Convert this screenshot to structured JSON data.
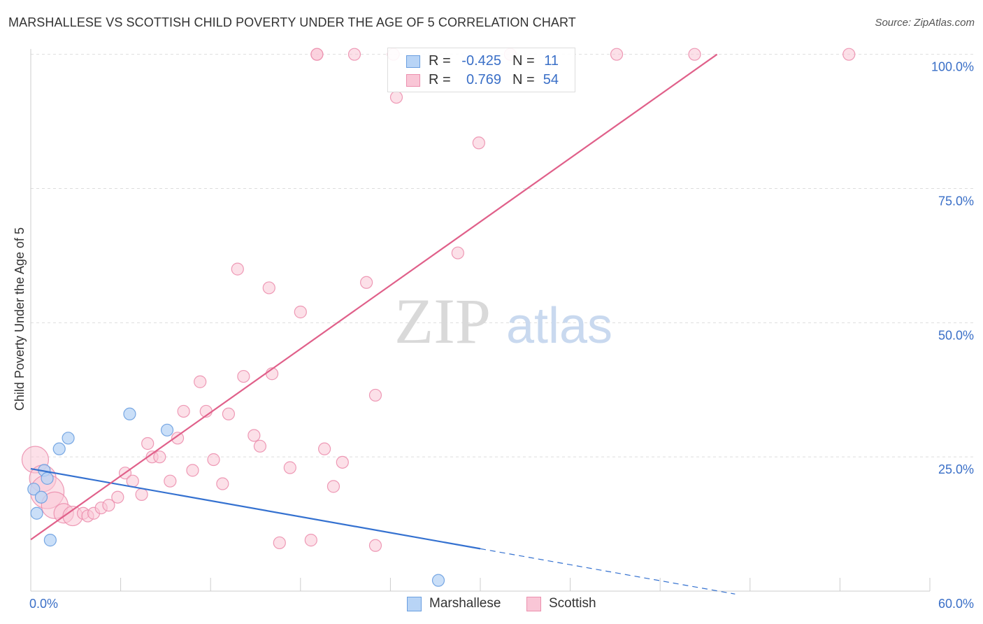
{
  "title": "MARSHALLESE VS SCOTTISH CHILD POVERTY UNDER THE AGE OF 5 CORRELATION CHART",
  "source": "Source: ZipAtlas.com",
  "watermark": {
    "zip": "ZIP",
    "atlas": "atlas"
  },
  "legend": {
    "rows": [
      {
        "r_label": "R =",
        "r_value": "-0.425",
        "n_label": "N =",
        "n_value": "11"
      },
      {
        "r_label": "R =",
        "r_value": "0.769",
        "n_label": "N =",
        "n_value": "54"
      }
    ]
  },
  "bottom_legend": {
    "marshallese": "Marshallese",
    "scottish": "Scottish"
  },
  "colors": {
    "marshallese_fill": "#b8d4f6",
    "marshallese_stroke": "#6a9fe0",
    "marshallese_line": "#3471d0",
    "scottish_fill": "#f9c6d6",
    "scottish_stroke": "#ec8fae",
    "scottish_line": "#e0608a",
    "tick_label": "#3a6fc7",
    "grid": "#dddddd"
  },
  "chart_data": {
    "type": "scatter",
    "title": "MARSHALLESE VS SCOTTISH CHILD POVERTY UNDER THE AGE OF 5 CORRELATION CHART",
    "xlabel": "",
    "ylabel": "Child Poverty Under the Age of 5",
    "xlim": [
      0,
      60
    ],
    "ylim": [
      0,
      101
    ],
    "x_tick_labels": [
      "0.0%",
      "60.0%"
    ],
    "y_ticks": [
      25,
      50,
      75,
      100
    ],
    "y_tick_labels": [
      "25.0%",
      "50.0%",
      "75.0%",
      "100.0%"
    ],
    "grid": true,
    "series": [
      {
        "name": "Marshallese",
        "points": [
          [
            0.2,
            19.0,
            1
          ],
          [
            0.4,
            14.5,
            1
          ],
          [
            0.7,
            17.5,
            1
          ],
          [
            0.9,
            22.5,
            1
          ],
          [
            1.1,
            21.0,
            1
          ],
          [
            1.3,
            9.5,
            1
          ],
          [
            1.9,
            26.5,
            1
          ],
          [
            2.5,
            28.5,
            1
          ],
          [
            6.6,
            33.0,
            1
          ],
          [
            9.1,
            30.0,
            1
          ],
          [
            27.2,
            2.0,
            1
          ]
        ],
        "trend": {
          "x1": 0.0,
          "y1": 22.8,
          "x2": 30.0,
          "y2": 7.9,
          "dashed_to_x": 47.0
        }
      },
      {
        "name": "Scottish",
        "points": [
          [
            0.3,
            24.5,
            3
          ],
          [
            0.8,
            21.0,
            3
          ],
          [
            1.1,
            18.5,
            4
          ],
          [
            1.6,
            16.0,
            3
          ],
          [
            2.2,
            14.5,
            2
          ],
          [
            2.8,
            14.0,
            2
          ],
          [
            3.5,
            14.5,
            1
          ],
          [
            3.8,
            14.0,
            1
          ],
          [
            4.2,
            14.5,
            1
          ],
          [
            4.7,
            15.5,
            1
          ],
          [
            5.2,
            16.0,
            1
          ],
          [
            5.8,
            17.5,
            1
          ],
          [
            6.3,
            22.0,
            1
          ],
          [
            6.8,
            20.5,
            1
          ],
          [
            7.4,
            18.0,
            1
          ],
          [
            7.8,
            27.5,
            1
          ],
          [
            8.1,
            25.0,
            1
          ],
          [
            8.6,
            25.0,
            1
          ],
          [
            9.3,
            20.5,
            1
          ],
          [
            9.8,
            28.5,
            1
          ],
          [
            10.2,
            33.5,
            1
          ],
          [
            10.8,
            22.5,
            1
          ],
          [
            11.3,
            39.0,
            1
          ],
          [
            11.7,
            33.5,
            1
          ],
          [
            12.2,
            24.5,
            1
          ],
          [
            12.8,
            20.0,
            1
          ],
          [
            13.2,
            33.0,
            1
          ],
          [
            13.8,
            60.0,
            1
          ],
          [
            14.2,
            40.0,
            1
          ],
          [
            14.9,
            29.0,
            1
          ],
          [
            15.3,
            27.0,
            1
          ],
          [
            15.9,
            56.5,
            1
          ],
          [
            16.1,
            40.5,
            1
          ],
          [
            16.6,
            9.0,
            1
          ],
          [
            17.3,
            23.0,
            1
          ],
          [
            18.0,
            52.0,
            1
          ],
          [
            18.7,
            9.5,
            1
          ],
          [
            19.1,
            100.0,
            1
          ],
          [
            19.6,
            26.5,
            1
          ],
          [
            20.2,
            19.5,
            1
          ],
          [
            20.8,
            24.0,
            1
          ],
          [
            21.6,
            100.0,
            1
          ],
          [
            22.4,
            57.5,
            1
          ],
          [
            23.0,
            8.5,
            1
          ],
          [
            23.0,
            36.5,
            1
          ],
          [
            24.2,
            100.0,
            1
          ],
          [
            24.4,
            92.0,
            1
          ],
          [
            28.5,
            63.0,
            1
          ],
          [
            29.9,
            83.5,
            1
          ],
          [
            32.0,
            100.0,
            1
          ],
          [
            39.1,
            100.0,
            1
          ],
          [
            44.3,
            100.0,
            1
          ],
          [
            54.6,
            100.0,
            1
          ],
          [
            19.1,
            100.0,
            1
          ]
        ],
        "trend": {
          "x1": 0.0,
          "y1": 9.6,
          "x2": 45.8,
          "y2": 100.0
        }
      }
    ]
  }
}
